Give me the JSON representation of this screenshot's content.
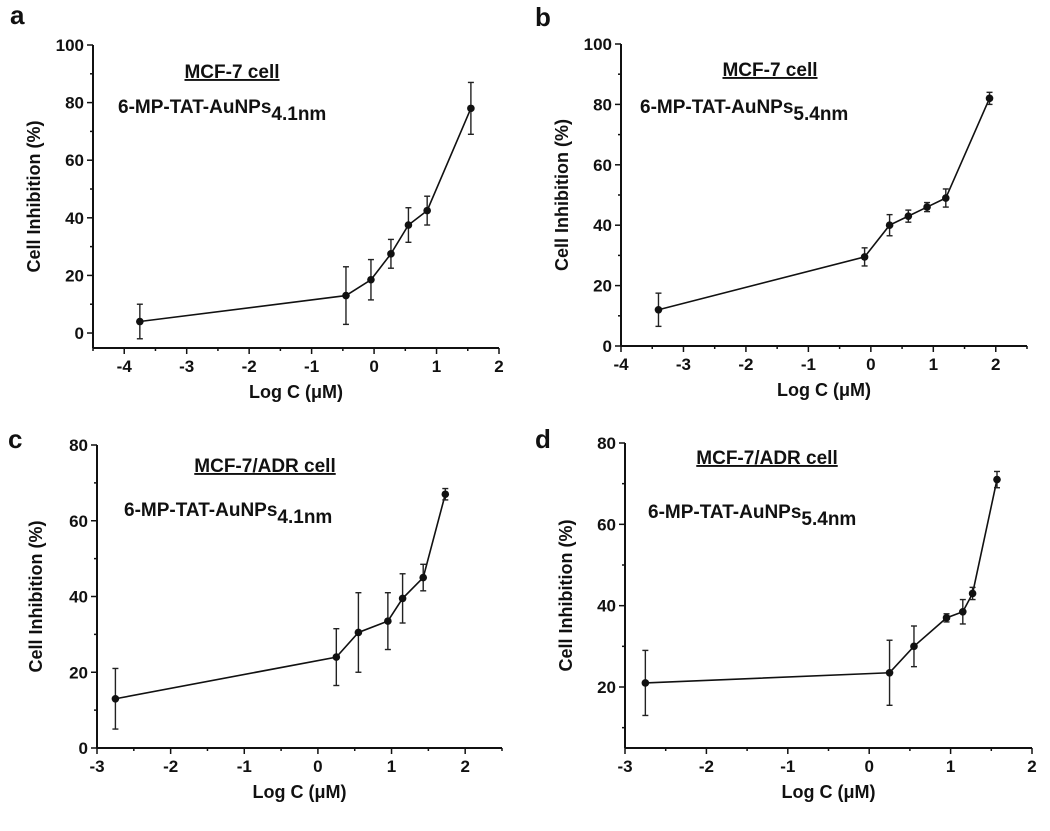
{
  "chart_data": [
    {
      "type": "line",
      "panel": "a",
      "title": "MCF-7 cell",
      "subtitle": {
        "main": "6-MP-TAT-AuNPs",
        "sub": "4.1nm"
      },
      "xlabel": "Log C (μM)",
      "ylabel": "Cell Inhibition (%)",
      "xlim": [
        -4.5,
        2
      ],
      "ylim": [
        -5.2,
        100
      ],
      "xticks": [
        -4,
        -3,
        -2,
        -1,
        0,
        1,
        2
      ],
      "yticks": [
        0,
        20,
        40,
        60,
        80,
        100
      ],
      "x": [
        -3.75,
        -0.45,
        -0.05,
        0.27,
        0.55,
        0.85,
        1.55
      ],
      "y": [
        4,
        13,
        18.5,
        27.5,
        37.5,
        42.5,
        78
      ],
      "err": [
        6,
        10,
        7,
        5,
        6,
        5,
        9
      ]
    },
    {
      "type": "line",
      "panel": "b",
      "title": "MCF-7 cell",
      "subtitle": {
        "main": "6-MP-TAT-AuNPs",
        "sub": "5.4nm"
      },
      "xlabel": "Log C (μM)",
      "ylabel": "Cell Inhibition (%)",
      "xlim": [
        -4,
        2.5
      ],
      "ylim": [
        0,
        100
      ],
      "xticks": [
        -4,
        -3,
        -2,
        -1,
        0,
        1,
        2
      ],
      "yticks": [
        0,
        20,
        40,
        60,
        80,
        100
      ],
      "x": [
        -3.4,
        -0.1,
        0.3,
        0.6,
        0.9,
        1.2,
        1.9
      ],
      "y": [
        12,
        29.5,
        40,
        43,
        46,
        49,
        82
      ],
      "err": [
        5.5,
        3,
        3.5,
        2,
        1.5,
        3,
        2
      ]
    },
    {
      "type": "line",
      "panel": "c",
      "title": "MCF-7/ADR cell",
      "subtitle": {
        "main": "6-MP-TAT-AuNPs",
        "sub": "4.1nm"
      },
      "xlabel": "Log C (μM)",
      "ylabel": "Cell Inhibition (%)",
      "xlim": [
        -3,
        2.5
      ],
      "ylim": [
        0,
        80
      ],
      "xticks": [
        -3,
        -2,
        -1,
        0,
        1,
        2
      ],
      "yticks": [
        0,
        20,
        40,
        60,
        80
      ],
      "x": [
        -2.75,
        0.25,
        0.55,
        0.95,
        1.15,
        1.43,
        1.73
      ],
      "y": [
        13,
        24,
        30.5,
        33.5,
        39.5,
        45,
        67
      ],
      "err": [
        8,
        7.5,
        10.5,
        7.5,
        6.5,
        3.5,
        1.5
      ]
    },
    {
      "type": "line",
      "panel": "d",
      "title": "MCF-7/ADR cell",
      "subtitle": {
        "main": "6-MP-TAT-AuNPs",
        "sub": "5.4nm"
      },
      "xlabel": "Log C (μM)",
      "ylabel": "Cell Inhibition (%)",
      "xlim": [
        -3,
        2
      ],
      "ylim": [
        5,
        80
      ],
      "xticks": [
        -3,
        -2,
        -1,
        0,
        1,
        2
      ],
      "yticks": [
        20,
        40,
        60,
        80
      ],
      "x": [
        -2.75,
        0.25,
        0.55,
        0.95,
        1.15,
        1.27,
        1.57
      ],
      "y": [
        21,
        23.5,
        30,
        37,
        38.5,
        43,
        71
      ],
      "err": [
        8,
        8,
        5,
        1,
        3,
        1.5,
        2
      ]
    }
  ]
}
